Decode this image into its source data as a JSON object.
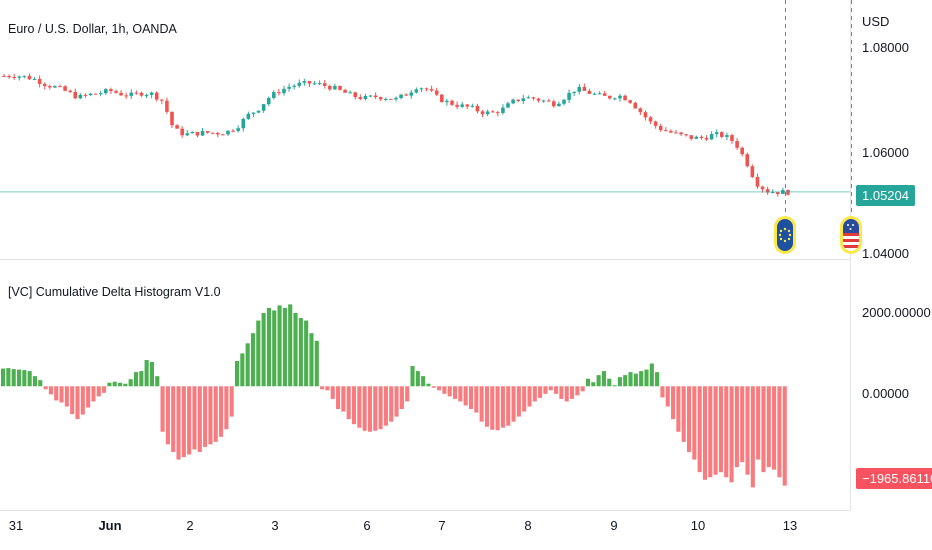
{
  "main_title": "Euro / U.S. Dollar, 1h, OANDA",
  "indicator_title": "[VC] Cumulative Delta Histogram V1.0",
  "currency": "USD",
  "price_axis": {
    "ticks": [
      "1.08000",
      "1.06000",
      "1.04000"
    ],
    "current_price": "1.05204",
    "current_price_color": "#26a69a"
  },
  "indicator_axis": {
    "ticks": [
      "2000.00000",
      "0.00000"
    ],
    "current_value": "−1965.86110",
    "current_value_color": "#f7525f"
  },
  "x_axis": {
    "labels": [
      "31",
      "Jun",
      "2",
      "3",
      "6",
      "7",
      "8",
      "9",
      "10",
      "13"
    ]
  },
  "events": [
    {
      "name": "eu-event-icon",
      "country": "EU"
    },
    {
      "name": "us-event-icon",
      "country": "US"
    }
  ],
  "colors": {
    "up": "#26a69a",
    "down": "#ef5350",
    "hist_up": "#4caf50",
    "hist_down": "#f77c80"
  },
  "chart_data": [
    {
      "type": "candlestick",
      "title": "Euro / U.S. Dollar, 1h, OANDA",
      "ylabel": "USD",
      "ylim": [
        1.038,
        1.088
      ],
      "close_path": [
        1.0778,
        1.0779,
        1.0776,
        1.077,
        1.0758,
        1.0752,
        1.0742,
        1.073,
        1.0736,
        1.074,
        1.0745,
        1.0738,
        1.0735,
        1.074,
        1.0738,
        1.0722,
        1.066,
        1.0648,
        1.065,
        1.0652,
        1.0651,
        1.0653,
        1.0665,
        1.069,
        1.0705,
        1.073,
        1.0745,
        1.0755,
        1.076,
        1.0762,
        1.0758,
        1.0752,
        1.0742,
        1.0733,
        1.0728,
        1.0732,
        1.073,
        1.0726,
        1.0738,
        1.0755,
        1.0748,
        1.0728,
        1.0718,
        1.0712,
        1.0708,
        1.0698,
        1.0695,
        1.0703,
        1.072,
        1.073,
        1.0728,
        1.0722,
        1.0716,
        1.0732,
        1.075,
        1.0742,
        1.0735,
        1.073,
        1.0735,
        1.0725,
        1.07,
        1.0675,
        1.066,
        1.0652,
        1.0645,
        1.064,
        1.064,
        1.0648,
        1.0645,
        1.063,
        1.059,
        1.054,
        1.0522,
        1.052,
        1.052
      ]
    },
    {
      "type": "bar",
      "title": "[VC] Cumulative Delta Histogram V1.0",
      "ylim": [
        -2250,
        2300
      ],
      "values": [
        350,
        360,
        340,
        330,
        320,
        300,
        200,
        120,
        -60,
        -160,
        -280,
        -320,
        -400,
        -550,
        -650,
        -560,
        -420,
        -300,
        -200,
        -130,
        70,
        90,
        70,
        50,
        140,
        280,
        300,
        520,
        480,
        200,
        -900,
        -1150,
        -1300,
        -1450,
        -1400,
        -1350,
        -1250,
        -1300,
        -1200,
        -1150,
        -1100,
        -1000,
        -850,
        -600,
        500,
        650,
        850,
        1050,
        1300,
        1450,
        1550,
        1500,
        1600,
        1550,
        1620,
        1450,
        1350,
        1300,
        1050,
        900,
        -60,
        -80,
        -250,
        -450,
        -500,
        -650,
        -750,
        -820,
        -880,
        -900,
        -880,
        -850,
        -780,
        -700,
        -600,
        -450,
        -300,
        400,
        300,
        200,
        50,
        -30,
        -80,
        -150,
        -200,
        -250,
        -300,
        -380,
        -450,
        -520,
        -700,
        -800,
        -860,
        -870,
        -820,
        -780,
        -700,
        -600,
        -500,
        -400,
        -300,
        -230,
        -150,
        -80,
        -150,
        -250,
        -300,
        -250,
        -180,
        -100,
        150,
        80,
        220,
        300,
        150,
        20,
        180,
        220,
        280,
        250,
        300,
        330,
        450,
        280,
        -220,
        -400,
        -650,
        -900,
        -1100,
        -1300,
        -1450,
        -1700,
        -1850,
        -1800,
        -1750,
        -1700,
        -1800,
        -1900,
        -1600,
        -1500,
        -1750,
        -2000,
        -1450,
        -1700,
        -1600,
        -1650,
        -1800,
        -1965.86
      ]
    }
  ]
}
